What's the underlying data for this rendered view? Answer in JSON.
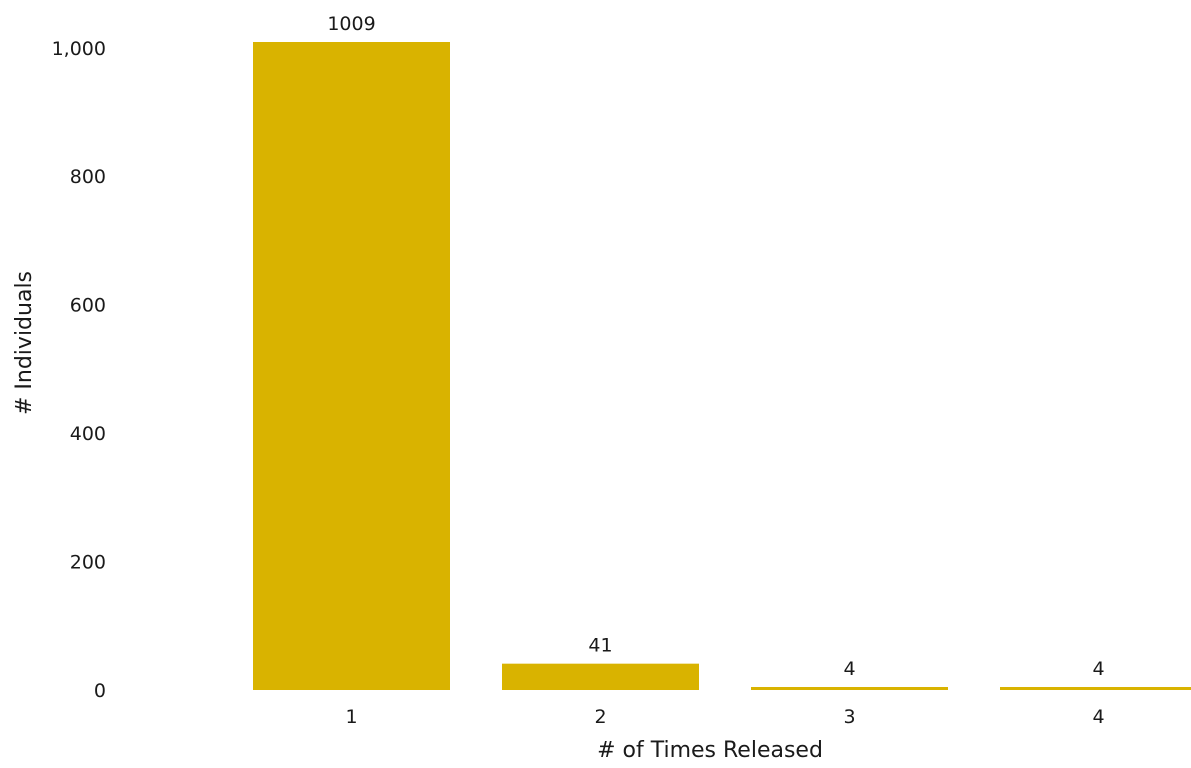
{
  "chart_data": {
    "type": "bar",
    "categories": [
      "1",
      "2",
      "3",
      "4"
    ],
    "values": [
      1009,
      41,
      4,
      4
    ],
    "data_labels": [
      "1009",
      "41",
      "4",
      "4"
    ],
    "title": "",
    "xlabel": "# of Times Released",
    "ylabel": "# Individuals",
    "ylim": [
      0,
      1009
    ],
    "yticks": [
      0,
      200,
      400,
      600,
      800,
      1000
    ],
    "ytick_labels": [
      "0",
      "200",
      "400",
      "600",
      "800",
      "1,000"
    ],
    "grid": false,
    "legend": "none",
    "bar_color": "#D9B300"
  }
}
